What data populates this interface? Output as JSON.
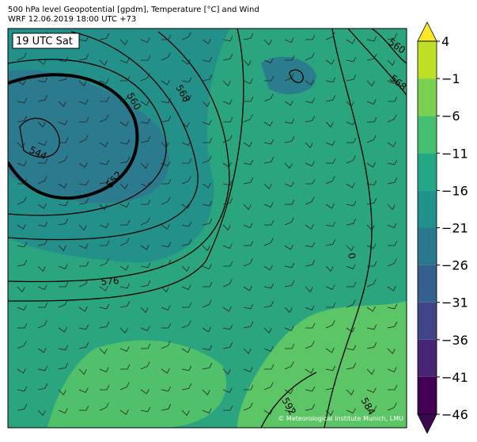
{
  "header": {
    "line1": "500 hPa level Geopotential [gpdm], Temperature [°C] and Wind",
    "line2": "WRF 12.06.2019 18:00 UTC +73"
  },
  "time_label": "19 UTC Sat",
  "contour_labels": [
    "560",
    "568",
    "560",
    "568",
    "544",
    "552",
    "576",
    "0",
    "592",
    "584"
  ],
  "credit": "© Meteorological Institute Munich, LMU",
  "colorbar": {
    "lim": [
      -46,
      4
    ],
    "ticks": [
      {
        "value": -46,
        "label": "−46"
      },
      {
        "value": -41,
        "label": "−41"
      },
      {
        "value": -36,
        "label": "−36"
      },
      {
        "value": -31,
        "label": "−31"
      },
      {
        "value": -26,
        "label": "−26"
      },
      {
        "value": -21,
        "label": "−21"
      },
      {
        "value": -16,
        "label": "−16"
      },
      {
        "value": -11,
        "label": "−11"
      },
      {
        "value": -6,
        "label": "−6"
      },
      {
        "value": -1,
        "label": "−1"
      },
      4
    ],
    "colors": [
      "#440154",
      "#482475",
      "#414487",
      "#355f8d",
      "#2a788e",
      "#21918c",
      "#22a884",
      "#44bf70",
      "#7ad151",
      "#bddf26"
    ],
    "under": "#3b0850",
    "over": "#fde725"
  }
}
